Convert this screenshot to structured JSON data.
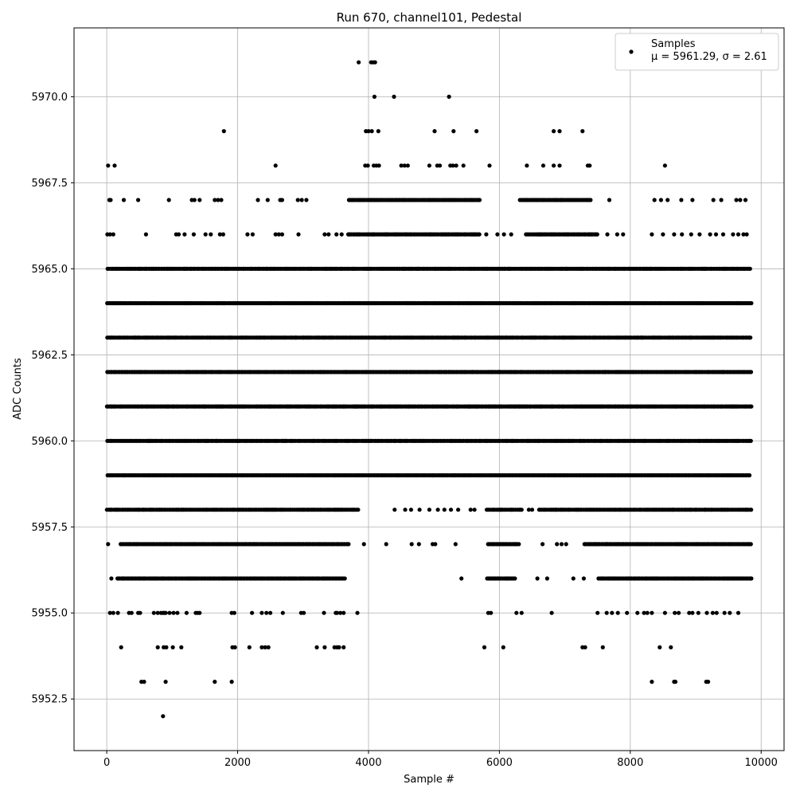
{
  "chart_data": {
    "type": "scatter",
    "title": "Run 670, channel101, Pedestal",
    "xlabel": "Sample #",
    "ylabel": "ADC Counts",
    "xlim": [
      -500,
      10350
    ],
    "ylim": [
      5951,
      5972
    ],
    "x_ticks": [
      0,
      2000,
      4000,
      6000,
      8000,
      10000
    ],
    "x_tick_labels": [
      "0",
      "2000",
      "4000",
      "6000",
      "8000",
      "10000"
    ],
    "y_ticks": [
      5952.5,
      5955.0,
      5957.5,
      5960.0,
      5962.5,
      5965.0,
      5967.5,
      5970.0
    ],
    "y_tick_labels": [
      "5952.5",
      "5955.0",
      "5957.5",
      "5960.0",
      "5962.5",
      "5965.0",
      "5967.5",
      "5970.0"
    ],
    "grid": true,
    "legend_position": "top-right",
    "marker_color": "#000000",
    "series": [
      {
        "name": "Samples",
        "stats_label": "μ = 5961.29, σ = 2.61",
        "x_range": [
          0,
          9850
        ],
        "levels": [
          {
            "y": 5971,
            "x": [
              3850,
              4040,
              4070,
              4100
            ]
          },
          {
            "y": 5970,
            "x": [
              4090,
              4390,
              5230
            ]
          },
          {
            "y": 5969,
            "x": [
              1790,
              3960,
              4000,
              4050,
              4150,
              5010,
              5300,
              5650,
              6830,
              6920,
              7270
            ]
          },
          {
            "y": 5968,
            "x": [
              20,
              120,
              2580,
              3950,
              3990,
              4080,
              4120,
              4160,
              4500,
              4550,
              4600,
              4930,
              5050,
              5090,
              5250,
              5290,
              5340,
              5450,
              5850,
              6420,
              6670,
              6830,
              6920,
              7350,
              7380,
              8530
            ]
          },
          {
            "y": 5967,
            "x": [
              40,
              60,
              260,
              480,
              950,
              1300,
              1340,
              1420,
              1650,
              1700,
              1750,
              2310,
              2460,
              2650,
              2680,
              2920,
              2980,
              3050
            ],
            "dense": [
              [
                3700,
                5700
              ],
              [
                6300,
                7400
              ]
            ],
            "sparse": [
              7680,
              8370,
              8470,
              8570,
              8780,
              8950,
              9270,
              9390,
              9620,
              9680,
              9760
            ]
          },
          {
            "y": 5966,
            "x": [
              10,
              50,
              100,
              600,
              1060,
              1100,
              1190,
              1330,
              1510,
              1590,
              1730,
              1780,
              2150,
              2230,
              2580,
              2630,
              2680,
              2930,
              3330,
              3390,
              3510,
              3590,
              3690
            ],
            "dense": [
              [
                3700,
                5700
              ],
              [
                6400,
                7500
              ]
            ],
            "sparse": [
              5800,
              5970,
              6070,
              6180,
              7650,
              7800,
              7890,
              8330,
              8500,
              8670,
              8790,
              8930,
              9060,
              9220,
              9310,
              9420,
              9570,
              9650,
              9730,
              9780
            ]
          },
          {
            "y": 5965,
            "dense": [
              [
                0,
                9850
              ]
            ]
          },
          {
            "y": 5964,
            "dense": [
              [
                0,
                9850
              ]
            ]
          },
          {
            "y": 5963,
            "dense": [
              [
                0,
                9850
              ]
            ]
          },
          {
            "y": 5962,
            "dense": [
              [
                0,
                9850
              ]
            ]
          },
          {
            "y": 5961,
            "dense": [
              [
                0,
                9850
              ]
            ]
          },
          {
            "y": 5960,
            "dense": [
              [
                0,
                9850
              ]
            ]
          },
          {
            "y": 5959,
            "dense": [
              [
                0,
                9850
              ]
            ]
          },
          {
            "y": 5958,
            "dense": [
              [
                0,
                3850
              ],
              [
                5800,
                6350
              ],
              [
                6600,
                9850
              ]
            ],
            "sparse": [
              4400,
              4560,
              4650,
              4780,
              4930,
              5060,
              5160,
              5260,
              5370,
              5560,
              5620,
              6450,
              6500
            ]
          },
          {
            "y": 5957,
            "x": [
              20,
              4270,
              4660,
              4770,
              4980,
              5020,
              5330
            ],
            "dense": [
              [
                200,
                3700
              ],
              [
                5820,
                6300
              ],
              [
                7300,
                9850
              ]
            ],
            "sparse": [
              3930,
              6660,
              6880,
              6950,
              7020
            ]
          },
          {
            "y": 5956,
            "x": [
              70,
              250,
              5420,
              6580,
              6730,
              7130
            ],
            "dense": [
              [
                150,
                3650
              ],
              [
                5800,
                6250
              ],
              [
                7500,
                9850
              ]
            ],
            "sparse": [
              7290
            ]
          },
          {
            "y": 5955,
            "x": [
              50,
              100,
              170,
              340,
              380,
              480,
              510,
              720,
              780,
              830,
              860,
              880,
              900,
              960,
              1020,
              1080,
              1220,
              1360,
              1390,
              1420,
              1910,
              1950,
              2220,
              2370,
              2440,
              2500,
              2690,
              2970,
              3010,
              3320,
              3500,
              3520,
              3570,
              3620,
              3830,
              5830,
              5870,
              6260,
              6340,
              6800,
              7500,
              7640,
              7720,
              7810,
              7950,
              8110,
              8210,
              8260,
              8330,
              8530,
              8680,
              8740,
              8900,
              8950,
              9040,
              9170,
              9260,
              9320,
              9440,
              9520,
              9650
            ]
          },
          {
            "y": 5954,
            "x": [
              220,
              780,
              870,
              910,
              1010,
              1140,
              1920,
              1960,
              2180,
              2370,
              2420,
              2470,
              3210,
              3330,
              3480,
              3520,
              3550,
              3620,
              5770,
              6060,
              7270,
              7310,
              7580,
              8450,
              8620
            ]
          },
          {
            "y": 5953,
            "x": [
              530,
              570,
              900,
              1650,
              1910,
              8330,
              8670,
              8690,
              9160,
              9190
            ]
          },
          {
            "y": 5952,
            "x": [
              860
            ]
          }
        ]
      }
    ]
  }
}
